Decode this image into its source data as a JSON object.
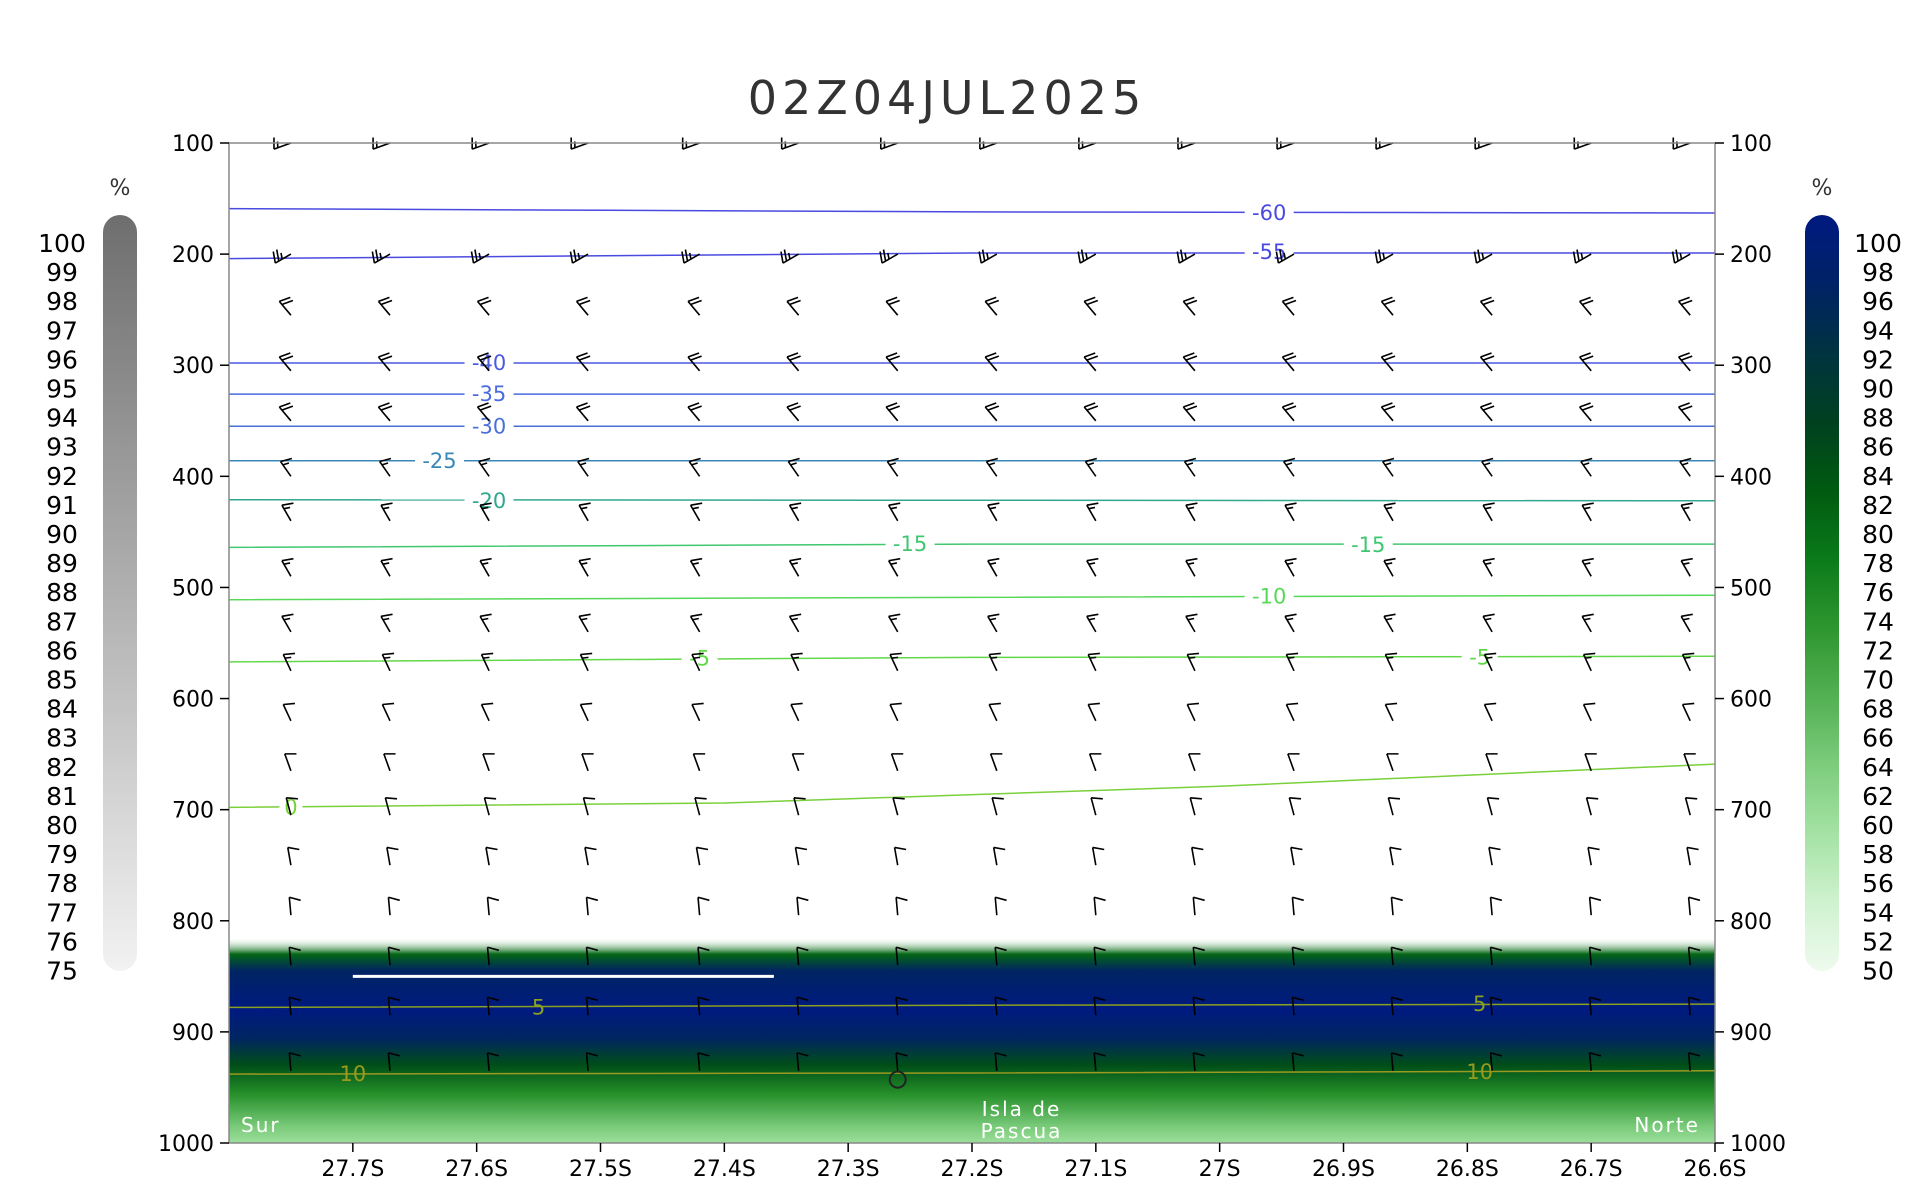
{
  "chart_data": {
    "type": "heatmap",
    "title": "02Z04JUL2025",
    "x_ticks": [
      "27.7S",
      "27.6S",
      "27.5S",
      "27.4S",
      "27.3S",
      "27.2S",
      "27.1S",
      "27S",
      "26.9S",
      "26.8S",
      "26.7S",
      "26.6S"
    ],
    "x_tick_values": [
      -27.7,
      -27.6,
      -27.5,
      -27.4,
      -27.3,
      -27.2,
      -27.1,
      -27.0,
      -26.9,
      -26.8,
      -26.7,
      -26.6
    ],
    "xlim": [
      -27.8,
      -26.6
    ],
    "y_label_ticks": [
      "100",
      "200",
      "300",
      "400",
      "500",
      "600",
      "700",
      "800",
      "900",
      "1000"
    ],
    "y_tick_values": [
      100,
      200,
      300,
      400,
      500,
      600,
      700,
      800,
      900,
      1000
    ],
    "ylim": [
      100,
      1000
    ],
    "y_inverted": true,
    "left_colorbar": {
      "unit": "%",
      "labels": [
        "100",
        "99",
        "98",
        "97",
        "96",
        "95",
        "94",
        "93",
        "92",
        "91",
        "90",
        "89",
        "88",
        "87",
        "86",
        "85",
        "84",
        "83",
        "82",
        "81",
        "80",
        "79",
        "78",
        "77",
        "76",
        "75"
      ],
      "min": 75,
      "max": 100,
      "color_high": "#6e6e6e",
      "color_low": "#f2f2f2"
    },
    "right_colorbar": {
      "unit": "%",
      "labels": [
        "100",
        "98",
        "96",
        "94",
        "92",
        "90",
        "88",
        "86",
        "84",
        "82",
        "80",
        "78",
        "76",
        "74",
        "72",
        "70",
        "68",
        "66",
        "64",
        "62",
        "60",
        "58",
        "56",
        "54",
        "52",
        "50"
      ],
      "min": 50,
      "max": 100,
      "colors": [
        "#001a80",
        "#002266",
        "#003340",
        "#004020",
        "#005a10",
        "#0a7a1a",
        "#2e962e",
        "#52b052",
        "#7ccc7c",
        "#a4e2a4",
        "#cff2cf",
        "#eefaee"
      ]
    },
    "humidity_profile": [
      {
        "p": 815,
        "rh": 50
      },
      {
        "p": 830,
        "rh": 80
      },
      {
        "p": 845,
        "rh": 95
      },
      {
        "p": 880,
        "rh": 100
      },
      {
        "p": 905,
        "rh": 95
      },
      {
        "p": 930,
        "rh": 84
      },
      {
        "p": 955,
        "rh": 74
      },
      {
        "p": 985,
        "rh": 64
      },
      {
        "p": 1000,
        "rh": 60
      }
    ],
    "isotherms": [
      {
        "value": -60,
        "label": "-60",
        "color": "#4a4ae0",
        "points": [
          [
            -27.8,
            159
          ],
          [
            -27.2,
            162
          ],
          [
            -26.6,
            163
          ]
        ],
        "label_positions": [
          [
            -26.96,
            163
          ]
        ]
      },
      {
        "value": -55,
        "label": "-55",
        "color": "#4a4ae0",
        "points": [
          [
            -27.8,
            204
          ],
          [
            -27.2,
            199
          ],
          [
            -26.6,
            199
          ]
        ],
        "label_positions": [
          [
            -26.96,
            198
          ]
        ]
      },
      {
        "value": -40,
        "label": "-40",
        "color": "#4a5ae0",
        "points": [
          [
            -27.8,
            298
          ],
          [
            -26.6,
            298
          ]
        ],
        "label_positions": [
          [
            -27.59,
            298
          ]
        ]
      },
      {
        "value": -35,
        "label": "-35",
        "color": "#4a6ae0",
        "points": [
          [
            -27.8,
            326
          ],
          [
            -26.6,
            326
          ]
        ],
        "label_positions": [
          [
            -27.59,
            326
          ]
        ]
      },
      {
        "value": -30,
        "label": "-30",
        "color": "#4a70d8",
        "points": [
          [
            -27.8,
            355
          ],
          [
            -26.6,
            355
          ]
        ],
        "label_positions": [
          [
            -27.59,
            355
          ]
        ]
      },
      {
        "value": -25,
        "label": "-25",
        "color": "#3a88b8",
        "points": [
          [
            -27.8,
            386
          ],
          [
            -26.6,
            386
          ]
        ],
        "label_positions": [
          [
            -27.63,
            386
          ]
        ]
      },
      {
        "value": -20,
        "label": "-20",
        "color": "#30a890",
        "points": [
          [
            -27.8,
            421
          ],
          [
            -26.6,
            422
          ]
        ],
        "label_positions": [
          [
            -27.59,
            422
          ]
        ]
      },
      {
        "value": -15,
        "label": "-15",
        "color": "#40c870",
        "points": [
          [
            -27.8,
            464
          ],
          [
            -27.2,
            461
          ],
          [
            -26.6,
            461
          ]
        ],
        "label_positions": [
          [
            -27.25,
            461
          ],
          [
            -26.88,
            462
          ]
        ]
      },
      {
        "value": -10,
        "label": "-10",
        "color": "#58d858",
        "points": [
          [
            -27.8,
            511
          ],
          [
            -27.2,
            509
          ],
          [
            -26.6,
            507
          ]
        ],
        "label_positions": [
          [
            -26.96,
            508
          ]
        ]
      },
      {
        "value": -5,
        "label": "-5",
        "color": "#60d848",
        "points": [
          [
            -27.8,
            567
          ],
          [
            -27.2,
            563
          ],
          [
            -26.6,
            562
          ]
        ],
        "label_positions": [
          [
            -27.42,
            564
          ],
          [
            -26.79,
            563
          ]
        ]
      },
      {
        "value": 0,
        "label": "0",
        "color": "#7ad03a",
        "points": [
          [
            -27.8,
            698
          ],
          [
            -27.4,
            694
          ],
          [
            -27.0,
            679
          ],
          [
            -26.6,
            659
          ]
        ],
        "label_positions": [
          [
            -27.75,
            698
          ]
        ]
      },
      {
        "value": 5,
        "label": "5",
        "color": "#8aa020",
        "points": [
          [
            -27.8,
            878
          ],
          [
            -27.2,
            876
          ],
          [
            -26.6,
            875
          ]
        ],
        "label_positions": [
          [
            -27.55,
            878
          ],
          [
            -26.79,
            875
          ]
        ]
      },
      {
        "value": 10,
        "label": "10",
        "color": "#9a9a20",
        "points": [
          [
            -27.8,
            938
          ],
          [
            -27.2,
            937
          ],
          [
            -26.6,
            935
          ]
        ],
        "label_positions": [
          [
            -27.7,
            938
          ],
          [
            -26.79,
            936
          ]
        ]
      }
    ],
    "wind_rows": [
      {
        "p": 100,
        "dir": 250,
        "speed": 15
      },
      {
        "p": 200,
        "dir": 240,
        "speed": 25
      },
      {
        "p": 255,
        "dir": 320,
        "speed": 20
      },
      {
        "p": 305,
        "dir": 320,
        "speed": 20
      },
      {
        "p": 350,
        "dir": 320,
        "speed": 20
      },
      {
        "p": 400,
        "dir": 325,
        "speed": 15
      },
      {
        "p": 440,
        "dir": 330,
        "speed": 15
      },
      {
        "p": 490,
        "dir": 330,
        "speed": 15
      },
      {
        "p": 540,
        "dir": 330,
        "speed": 15
      },
      {
        "p": 575,
        "dir": 335,
        "speed": 15
      },
      {
        "p": 620,
        "dir": 335,
        "speed": 10
      },
      {
        "p": 665,
        "dir": 340,
        "speed": 10
      },
      {
        "p": 705,
        "dir": 345,
        "speed": 10
      },
      {
        "p": 750,
        "dir": 350,
        "speed": 10
      },
      {
        "p": 795,
        "dir": 355,
        "speed": 10
      },
      {
        "p": 840,
        "dir": 355,
        "speed": 10
      },
      {
        "p": 885,
        "dir": 355,
        "speed": 10
      },
      {
        "p": 935,
        "dir": 355,
        "speed": 10
      }
    ],
    "wind_columns": [
      -27.75,
      -27.67,
      -27.59,
      -27.51,
      -27.42,
      -27.34,
      -27.26,
      -27.18,
      -27.1,
      -27.02,
      -26.94,
      -26.86,
      -26.78,
      -26.7,
      -26.62
    ],
    "station_marker": {
      "lat": -27.26,
      "p": 943,
      "label": "Isla de Pascua"
    },
    "horizontal_line": {
      "lat_start": -27.7,
      "lat_end": -27.36,
      "p": 850
    },
    "corner_left": "Sur",
    "corner_right": "Norte"
  }
}
